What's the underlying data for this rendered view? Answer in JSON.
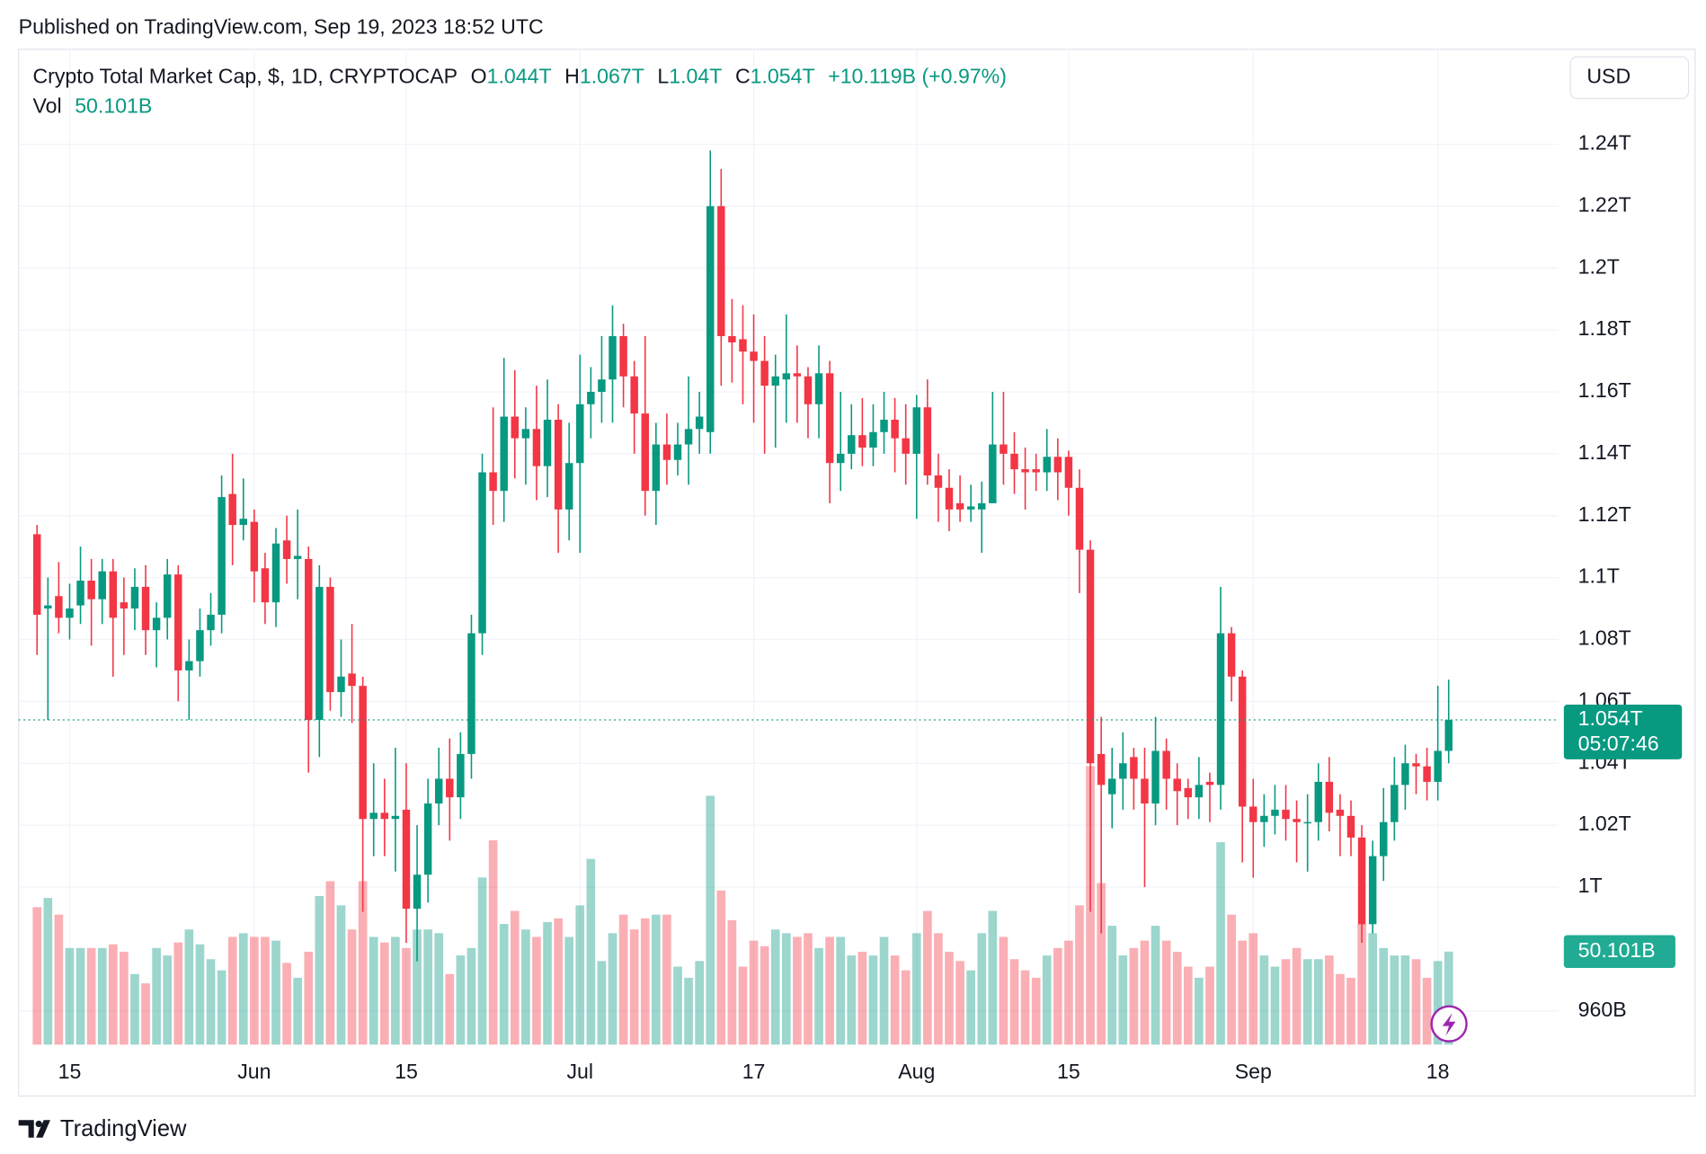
{
  "published": "Published on TradingView.com, Sep 19, 2023 18:52 UTC",
  "brand": "TradingView",
  "chart_data": {
    "type": "candlestick",
    "title": "Crypto Total Market Cap, $, 1D, CRYPTOCAP",
    "header": {
      "open_label": "O",
      "open": "1.044T",
      "high_label": "H",
      "high": "1.067T",
      "low_label": "L",
      "low": "1.04T",
      "close_label": "C",
      "close": "1.054T",
      "change": "+10.119B (+0.97%)",
      "volume_label": "Vol",
      "volume": "50.101B"
    },
    "currency": "USD",
    "last_price_label": "1.054T",
    "countdown": "05:07:46",
    "last_volume_label": "50.101B",
    "up_color": "#089981",
    "down_color": "#f23645",
    "grid": true,
    "open": [
      1114,
      1090,
      1094,
      1087,
      1091,
      1099,
      1093,
      1102,
      1092,
      1090,
      1097,
      1083,
      1087,
      1101,
      1070,
      1073,
      1083,
      1088,
      1127,
      1117,
      1118,
      1103,
      1092,
      1112,
      1106,
      1106,
      1054,
      1097,
      1063,
      1069,
      1065,
      1022,
      1024,
      1022,
      1025,
      993,
      1004,
      1027,
      1035,
      1029,
      1043,
      1082,
      1134,
      1128,
      1152,
      1145,
      1148,
      1136,
      1151,
      1122,
      1137,
      1156,
      1160,
      1164,
      1178,
      1165,
      1153,
      1128,
      1143,
      1138,
      1143,
      1148,
      1147,
      1220,
      1178,
      1177,
      1173,
      1170,
      1162,
      1164,
      1166,
      1165,
      1156,
      1166,
      1137,
      1140,
      1146,
      1142,
      1147,
      1151,
      1145,
      1140,
      1155,
      1133,
      1129,
      1124,
      1122,
      1122,
      1124,
      1143,
      1140,
      1135,
      1135,
      1134,
      1139,
      1139,
      1129,
      1109,
      1043,
      1030,
      1035,
      1042,
      1035,
      1027,
      1044,
      1035,
      1032,
      1029,
      1034,
      1033,
      1082,
      1068,
      1026,
      1021,
      1023,
      1025,
      1022,
      1021,
      1021,
      1034,
      1025,
      1023,
      1016,
      988,
      1010,
      1021,
      1033,
      1040,
      1039,
      1034,
      1044
    ],
    "high": [
      1117,
      1100,
      1105,
      1098,
      1110,
      1106,
      1106,
      1106,
      1100,
      1103,
      1104,
      1092,
      1106,
      1104,
      1080,
      1090,
      1095,
      1133,
      1140,
      1132,
      1122,
      1108,
      1116,
      1120,
      1122,
      1110,
      1104,
      1100,
      1080,
      1085,
      1068,
      1040,
      1035,
      1045,
      1040,
      1020,
      1035,
      1045,
      1048,
      1050,
      1088,
      1140,
      1155,
      1171,
      1167,
      1155,
      1162,
      1164,
      1156,
      1150,
      1172,
      1168,
      1178,
      1188,
      1182,
      1170,
      1178,
      1150,
      1153,
      1150,
      1165,
      1160,
      1238,
      1232,
      1190,
      1188,
      1185,
      1178,
      1172,
      1185,
      1175,
      1168,
      1175,
      1170,
      1160,
      1156,
      1158,
      1156,
      1160,
      1158,
      1156,
      1159,
      1164,
      1140,
      1135,
      1133,
      1130,
      1131,
      1160,
      1160,
      1147,
      1142,
      1140,
      1148,
      1145,
      1141,
      1135,
      1112,
      1055,
      1045,
      1050,
      1045,
      1045,
      1055,
      1048,
      1040,
      1035,
      1042,
      1037,
      1097,
      1084,
      1070,
      1035,
      1030,
      1033,
      1033,
      1028,
      1030,
      1040,
      1042,
      1030,
      1028,
      1020,
      1015,
      1032,
      1042,
      1046,
      1043,
      1045,
      1065,
      1067
    ],
    "low": [
      1075,
      1054,
      1082,
      1080,
      1085,
      1078,
      1085,
      1068,
      1075,
      1083,
      1075,
      1071,
      1080,
      1060,
      1054,
      1068,
      1078,
      1082,
      1104,
      1112,
      1092,
      1085,
      1084,
      1098,
      1093,
      1037,
      1042,
      1057,
      1055,
      1053,
      992,
      1010,
      1010,
      1005,
      982,
      976,
      995,
      1020,
      1015,
      1022,
      1035,
      1075,
      1117,
      1118,
      1132,
      1130,
      1125,
      1126,
      1108,
      1112,
      1108,
      1145,
      1150,
      1150,
      1155,
      1140,
      1120,
      1117,
      1130,
      1133,
      1130,
      1140,
      1140,
      1162,
      1163,
      1156,
      1150,
      1140,
      1142,
      1150,
      1150,
      1145,
      1145,
      1124,
      1128,
      1135,
      1136,
      1136,
      1140,
      1134,
      1130,
      1119,
      1130,
      1118,
      1115,
      1118,
      1118,
      1108,
      1125,
      1130,
      1127,
      1122,
      1128,
      1128,
      1125,
      1120,
      1095,
      992,
      985,
      1019,
      1025,
      1025,
      1000,
      1020,
      1025,
      1020,
      1022,
      1022,
      1021,
      1025,
      1060,
      1008,
      1003,
      1013,
      1017,
      1015,
      1008,
      1005,
      1015,
      1018,
      1010,
      1010,
      982,
      985,
      1002,
      1015,
      1025,
      1030,
      1028,
      1028,
      1040
    ],
    "close": [
      1088,
      1091,
      1087,
      1090,
      1099,
      1093,
      1102,
      1087,
      1090,
      1097,
      1083,
      1087,
      1101,
      1070,
      1073,
      1083,
      1088,
      1126,
      1117,
      1119,
      1102,
      1092,
      1111,
      1106,
      1107,
      1054,
      1097,
      1063,
      1068,
      1065,
      1022,
      1024,
      1022,
      1023,
      993,
      1004,
      1027,
      1035,
      1029,
      1043,
      1082,
      1134,
      1128,
      1152,
      1145,
      1148,
      1136,
      1151,
      1122,
      1137,
      1156,
      1160,
      1164,
      1178,
      1165,
      1153,
      1128,
      1143,
      1138,
      1143,
      1148,
      1152,
      1220,
      1178,
      1176,
      1173,
      1170,
      1162,
      1165,
      1166,
      1165,
      1156,
      1166,
      1137,
      1140,
      1146,
      1142,
      1147,
      1151,
      1145,
      1140,
      1155,
      1133,
      1129,
      1122,
      1122,
      1123,
      1124,
      1143,
      1140,
      1135,
      1134,
      1134,
      1139,
      1134,
      1129,
      1109,
      1040,
      1033,
      1035,
      1040,
      1035,
      1027,
      1044,
      1035,
      1031,
      1029,
      1033,
      1033,
      1082,
      1068,
      1026,
      1021,
      1023,
      1025,
      1022,
      1021,
      1021,
      1034,
      1024,
      1023,
      1016,
      988,
      1010,
      1021,
      1033,
      1040,
      1039,
      1034,
      1044,
      1054
    ],
    "volume": [
      74,
      79,
      70,
      52,
      52,
      52,
      52,
      54,
      50,
      38,
      33,
      52,
      48,
      55,
      62,
      54,
      46,
      40,
      58,
      60,
      58,
      58,
      56,
      44,
      36,
      50,
      80,
      88,
      75,
      62,
      88,
      58,
      55,
      58,
      52,
      62,
      62,
      60,
      38,
      48,
      52,
      90,
      110,
      65,
      72,
      62,
      58,
      66,
      68,
      58,
      75,
      100,
      45,
      60,
      70,
      62,
      68,
      70,
      70,
      42,
      36,
      45,
      134,
      83,
      67,
      42,
      56,
      53,
      62,
      60,
      58,
      60,
      52,
      58,
      58,
      48,
      50,
      48,
      58,
      48,
      40,
      60,
      72,
      60,
      50,
      45,
      40,
      60,
      72,
      58,
      46,
      40,
      36,
      48,
      52,
      56,
      75,
      150,
      87,
      64,
      48,
      52,
      56,
      64,
      56,
      50,
      42,
      36,
      42,
      109,
      70,
      56,
      60,
      48,
      42,
      46,
      52,
      46,
      46,
      48,
      38,
      36,
      65,
      60,
      52,
      48,
      48,
      46,
      36,
      45,
      50.101
    ],
    "ylim": [
      949.1,
      1270.7
    ],
    "yticks": [
      {
        "value": 960,
        "label": "960B"
      },
      {
        "value": 1000,
        "label": "1T"
      },
      {
        "value": 1020,
        "label": "1.02T"
      },
      {
        "value": 1040,
        "label": "1.04T"
      },
      {
        "value": 1060,
        "label": "1.06T"
      },
      {
        "value": 1080,
        "label": "1.08T"
      },
      {
        "value": 1100,
        "label": "1.1T"
      },
      {
        "value": 1120,
        "label": "1.12T"
      },
      {
        "value": 1140,
        "label": "1.14T"
      },
      {
        "value": 1160,
        "label": "1.16T"
      },
      {
        "value": 1180,
        "label": "1.18T"
      },
      {
        "value": 1200,
        "label": "1.2T"
      },
      {
        "value": 1220,
        "label": "1.22T"
      },
      {
        "value": 1240,
        "label": "1.24T"
      }
    ],
    "vol_ylim": [
      0,
      536
    ],
    "xlim": [
      -1.7,
      140.1
    ],
    "xticks": [
      {
        "value": 3,
        "label": "15"
      },
      {
        "value": 20,
        "label": "Jun"
      },
      {
        "value": 34,
        "label": "15"
      },
      {
        "value": 50,
        "label": "Jul"
      },
      {
        "value": 66,
        "label": "17"
      },
      {
        "value": 81,
        "label": "Aug"
      },
      {
        "value": 95,
        "label": "15"
      },
      {
        "value": 112,
        "label": "Sep"
      },
      {
        "value": 129,
        "label": "18"
      }
    ]
  }
}
